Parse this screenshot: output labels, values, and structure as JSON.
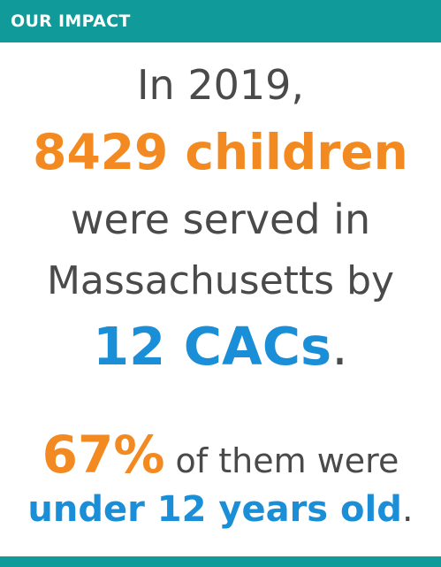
{
  "header": {
    "title": "OUR IMPACT"
  },
  "impact": {
    "line1": "In 2019,",
    "children_count": "8429 children",
    "line3": "were served in",
    "line4": "Massachusetts by",
    "cacs": "12 CACs",
    "period": ".",
    "percent": "67%",
    "percent_tail": " of them were",
    "age_text": "under 12 years old",
    "period2": "."
  },
  "colors": {
    "teal": "#109a9a",
    "orange": "#f38a21",
    "blue": "#1a8ed6",
    "gray": "#4a4a4a"
  }
}
